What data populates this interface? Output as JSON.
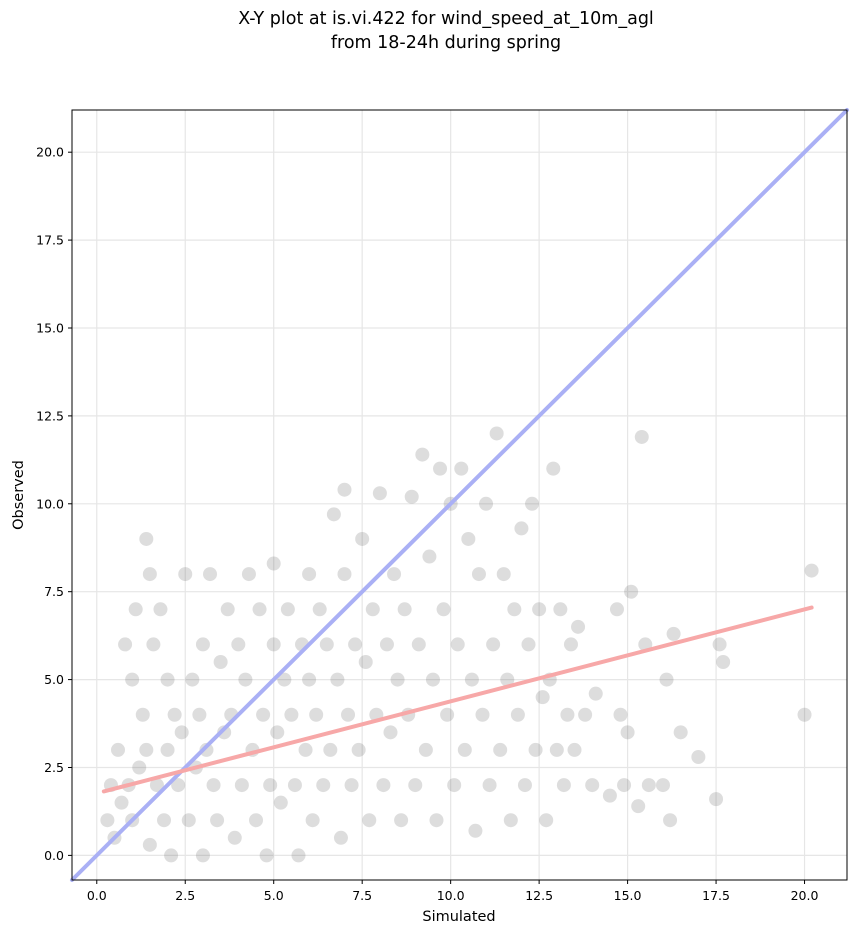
{
  "chart_data": {
    "type": "scatter",
    "title": "X-Y plot at is.vi.422 for wind_speed_at_10m_agl\nfrom 18-24h during spring",
    "xlabel": "Simulated",
    "ylabel": "Observed",
    "xlim": [
      -0.7,
      21.2
    ],
    "ylim": [
      -0.7,
      21.2
    ],
    "xticks": [
      0.0,
      2.5,
      5.0,
      7.5,
      10.0,
      12.5,
      15.0,
      17.5,
      20.0
    ],
    "yticks": [
      0.0,
      2.5,
      5.0,
      7.5,
      10.0,
      12.5,
      15.0,
      17.5,
      20.0
    ],
    "grid": true,
    "colors": {
      "points": "#555555",
      "identity_line": "#aab0f5",
      "regression_line": "#f7a8a8",
      "grid": "#e6e6e6"
    },
    "lines": [
      {
        "name": "1:1",
        "x": [
          -0.7,
          21.2
        ],
        "y": [
          -0.7,
          21.2
        ]
      },
      {
        "name": "fit",
        "x": [
          0.2,
          20.2
        ],
        "y": [
          1.82,
          7.05
        ]
      }
    ],
    "series": [
      {
        "points": [
          [
            0.3,
            1.0
          ],
          [
            0.4,
            2.0
          ],
          [
            0.5,
            0.5
          ],
          [
            0.6,
            3.0
          ],
          [
            0.7,
            1.5
          ],
          [
            0.8,
            6.0
          ],
          [
            0.9,
            2.0
          ],
          [
            1.0,
            5.0
          ],
          [
            1.0,
            1.0
          ],
          [
            1.1,
            7.0
          ],
          [
            1.2,
            2.5
          ],
          [
            1.3,
            4.0
          ],
          [
            1.4,
            3.0
          ],
          [
            1.4,
            9.0
          ],
          [
            1.5,
            8.0
          ],
          [
            1.5,
            0.3
          ],
          [
            1.6,
            6.0
          ],
          [
            1.7,
            2.0
          ],
          [
            1.8,
            7.0
          ],
          [
            1.9,
            1.0
          ],
          [
            2.0,
            3.0
          ],
          [
            2.0,
            5.0
          ],
          [
            2.1,
            0.0
          ],
          [
            2.2,
            4.0
          ],
          [
            2.3,
            2.0
          ],
          [
            2.4,
            3.5
          ],
          [
            2.5,
            8.0
          ],
          [
            2.6,
            1.0
          ],
          [
            2.7,
            5.0
          ],
          [
            2.8,
            2.5
          ],
          [
            2.9,
            4.0
          ],
          [
            3.0,
            0.0
          ],
          [
            3.0,
            6.0
          ],
          [
            3.1,
            3.0
          ],
          [
            3.2,
            8.0
          ],
          [
            3.3,
            2.0
          ],
          [
            3.4,
            1.0
          ],
          [
            3.5,
            5.5
          ],
          [
            3.6,
            3.5
          ],
          [
            3.7,
            7.0
          ],
          [
            3.8,
            4.0
          ],
          [
            3.9,
            0.5
          ],
          [
            4.0,
            6.0
          ],
          [
            4.1,
            2.0
          ],
          [
            4.2,
            5.0
          ],
          [
            4.3,
            8.0
          ],
          [
            4.4,
            3.0
          ],
          [
            4.5,
            1.0
          ],
          [
            4.6,
            7.0
          ],
          [
            4.7,
            4.0
          ],
          [
            4.8,
            0.0
          ],
          [
            4.9,
            2.0
          ],
          [
            5.0,
            6.0
          ],
          [
            5.0,
            8.3
          ],
          [
            5.1,
            3.5
          ],
          [
            5.2,
            1.5
          ],
          [
            5.3,
            5.0
          ],
          [
            5.4,
            7.0
          ],
          [
            5.5,
            4.0
          ],
          [
            5.6,
            2.0
          ],
          [
            5.7,
            0.0
          ],
          [
            5.8,
            6.0
          ],
          [
            5.9,
            3.0
          ],
          [
            6.0,
            5.0
          ],
          [
            6.0,
            8.0
          ],
          [
            6.1,
            1.0
          ],
          [
            6.2,
            4.0
          ],
          [
            6.3,
            7.0
          ],
          [
            6.4,
            2.0
          ],
          [
            6.5,
            6.0
          ],
          [
            6.6,
            3.0
          ],
          [
            6.7,
            9.7
          ],
          [
            6.8,
            5.0
          ],
          [
            6.9,
            0.5
          ],
          [
            7.0,
            8.0
          ],
          [
            7.0,
            10.4
          ],
          [
            7.1,
            4.0
          ],
          [
            7.2,
            2.0
          ],
          [
            7.3,
            6.0
          ],
          [
            7.4,
            3.0
          ],
          [
            7.5,
            9.0
          ],
          [
            7.6,
            5.5
          ],
          [
            7.7,
            1.0
          ],
          [
            7.8,
            7.0
          ],
          [
            7.9,
            4.0
          ],
          [
            8.0,
            10.3
          ],
          [
            8.1,
            2.0
          ],
          [
            8.2,
            6.0
          ],
          [
            8.3,
            3.5
          ],
          [
            8.4,
            8.0
          ],
          [
            8.5,
            5.0
          ],
          [
            8.6,
            1.0
          ],
          [
            8.7,
            7.0
          ],
          [
            8.8,
            4.0
          ],
          [
            8.9,
            10.2
          ],
          [
            9.0,
            2.0
          ],
          [
            9.1,
            6.0
          ],
          [
            9.2,
            11.4
          ],
          [
            9.3,
            3.0
          ],
          [
            9.4,
            8.5
          ],
          [
            9.5,
            5.0
          ],
          [
            9.6,
            1.0
          ],
          [
            9.7,
            11.0
          ],
          [
            9.8,
            7.0
          ],
          [
            9.9,
            4.0
          ],
          [
            10.0,
            10.0
          ],
          [
            10.1,
            2.0
          ],
          [
            10.2,
            6.0
          ],
          [
            10.3,
            11.0
          ],
          [
            10.4,
            3.0
          ],
          [
            10.5,
            9.0
          ],
          [
            10.6,
            5.0
          ],
          [
            10.7,
            0.7
          ],
          [
            10.8,
            8.0
          ],
          [
            10.9,
            4.0
          ],
          [
            11.0,
            10.0
          ],
          [
            11.1,
            2.0
          ],
          [
            11.2,
            6.0
          ],
          [
            11.3,
            12.0
          ],
          [
            11.4,
            3.0
          ],
          [
            11.5,
            8.0
          ],
          [
            11.6,
            5.0
          ],
          [
            11.7,
            1.0
          ],
          [
            11.8,
            7.0
          ],
          [
            11.9,
            4.0
          ],
          [
            12.0,
            9.3
          ],
          [
            12.1,
            2.0
          ],
          [
            12.2,
            6.0
          ],
          [
            12.3,
            10.0
          ],
          [
            12.4,
            3.0
          ],
          [
            12.5,
            7.0
          ],
          [
            12.6,
            4.5
          ],
          [
            12.7,
            1.0
          ],
          [
            12.8,
            5.0
          ],
          [
            12.9,
            11.0
          ],
          [
            13.0,
            3.0
          ],
          [
            13.1,
            7.0
          ],
          [
            13.2,
            2.0
          ],
          [
            13.3,
            4.0
          ],
          [
            13.4,
            6.0
          ],
          [
            13.5,
            3.0
          ],
          [
            13.6,
            6.5
          ],
          [
            13.8,
            4.0
          ],
          [
            14.0,
            2.0
          ],
          [
            14.1,
            4.6
          ],
          [
            14.5,
            1.7
          ],
          [
            14.7,
            7.0
          ],
          [
            14.8,
            4.0
          ],
          [
            14.9,
            2.0
          ],
          [
            15.0,
            3.5
          ],
          [
            15.1,
            7.5
          ],
          [
            15.3,
            1.4
          ],
          [
            15.4,
            11.9
          ],
          [
            15.5,
            6.0
          ],
          [
            15.6,
            2.0
          ],
          [
            16.0,
            2.0
          ],
          [
            16.1,
            5.0
          ],
          [
            16.2,
            1.0
          ],
          [
            16.3,
            6.3
          ],
          [
            16.5,
            3.5
          ],
          [
            17.0,
            2.8
          ],
          [
            17.5,
            1.6
          ],
          [
            17.6,
            6.0
          ],
          [
            17.7,
            5.5
          ],
          [
            20.0,
            4.0
          ],
          [
            20.2,
            8.1
          ]
        ]
      }
    ]
  }
}
